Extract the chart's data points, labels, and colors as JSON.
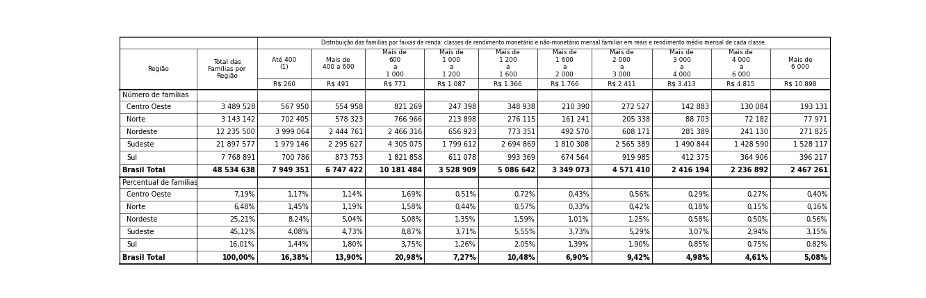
{
  "title_top": "Distribuição das famílias por faixas de renda: classes de rendimento monetário e não-monetário mensal familiar em reais e rendimento médio mensal de cada classe.",
  "section1_label": "Número de famílias",
  "section2_label": "Percentual de famílias",
  "col_headers": [
    "Até 400\n(1)",
    "Mais de\n400 a 600",
    "Mais de\n600\na\n1 000",
    "Mais de\n1 000\na\n1 200",
    "Mais de\n1 200\na\n1 600",
    "Mais de\n1 600\na\n2 000",
    "Mais de\n2 000\na\n3 000",
    "Mais de\n3 000\na\n4 000",
    "Mais de\n4 000\na\n6 000",
    "Mais de\n6 000"
  ],
  "rs_vals": [
    "R$ 260",
    "R$ 491",
    "R$ 771",
    "R$ 1.087",
    "R$ 1.366",
    "R$ 1.766",
    "R$ 2.411",
    "R$ 3.413",
    "R$ 4.815",
    "R$ 10.898"
  ],
  "rows_num": [
    [
      "Centro Oeste",
      "3 489 528",
      "567 950",
      "554 958",
      "821 269",
      "247 398",
      "348 938",
      "210 390",
      "272 527",
      "142 883",
      "130 084",
      "193 131"
    ],
    [
      "Norte",
      "3 143 142",
      "702 405",
      "578 323",
      "766 966",
      "213 898",
      "276 115",
      "161 241",
      "205 338",
      "88 703",
      "72 182",
      "77 971"
    ],
    [
      "Nordeste",
      "12 235 500",
      "3 999 064",
      "2 444 761",
      "2 466 316",
      "656 923",
      "773 351",
      "492 570",
      "608 171",
      "281 389",
      "241 130",
      "271 825"
    ],
    [
      "Sudeste",
      "21 897 577",
      "1 979 146",
      "2 295 627",
      "4 305 075",
      "1 799 612",
      "2 694 869",
      "1 810 308",
      "2 565 389",
      "1 490 844",
      "1 428 590",
      "1 528 117"
    ],
    [
      "Sul",
      "7 768 891",
      "700 786",
      "873 753",
      "1 821 858",
      "611 078",
      "993 369",
      "674 564",
      "919 985",
      "412 375",
      "364 906",
      "396 217"
    ],
    [
      "Brasil Total",
      "48 534 638",
      "7 949 351",
      "6 747 422",
      "10 181 484",
      "3 528 909",
      "5 086 642",
      "3 349 073",
      "4 571 410",
      "2 416 194",
      "2 236 892",
      "2 467 261"
    ]
  ],
  "rows_pct": [
    [
      "Centro Oeste",
      "7,19%",
      "1,17%",
      "1,14%",
      "1,69%",
      "0,51%",
      "0,72%",
      "0,43%",
      "0,56%",
      "0,29%",
      "0,27%",
      "0,40%"
    ],
    [
      "Norte",
      "6,48%",
      "1,45%",
      "1,19%",
      "1,58%",
      "0,44%",
      "0,57%",
      "0,33%",
      "0,42%",
      "0,18%",
      "0,15%",
      "0,16%"
    ],
    [
      "Nordeste",
      "25,21%",
      "8,24%",
      "5,04%",
      "5,08%",
      "1,35%",
      "1,59%",
      "1,01%",
      "1,25%",
      "0,58%",
      "0,50%",
      "0,56%"
    ],
    [
      "Sudeste",
      "45,12%",
      "4,08%",
      "4,73%",
      "8,87%",
      "3,71%",
      "5,55%",
      "3,73%",
      "5,29%",
      "3,07%",
      "2,94%",
      "3,15%"
    ],
    [
      "Sul",
      "16,01%",
      "1,44%",
      "1,80%",
      "3,75%",
      "1,26%",
      "2,05%",
      "1,39%",
      "1,90%",
      "0,85%",
      "0,75%",
      "0,82%"
    ],
    [
      "Brasil Total",
      "100,00%",
      "16,38%",
      "13,90%",
      "20,98%",
      "7,27%",
      "10,48%",
      "6,90%",
      "9,42%",
      "4,98%",
      "4,61%",
      "5,08%"
    ]
  ],
  "col_widths_raw": [
    115,
    90,
    80,
    80,
    88,
    80,
    88,
    80,
    90,
    88,
    88,
    88
  ],
  "bg_color": "#ffffff",
  "fontsize_title": 5.5,
  "fontsize_header": 6.5,
  "fontsize_data": 7.0,
  "fontsize_section": 7.0
}
